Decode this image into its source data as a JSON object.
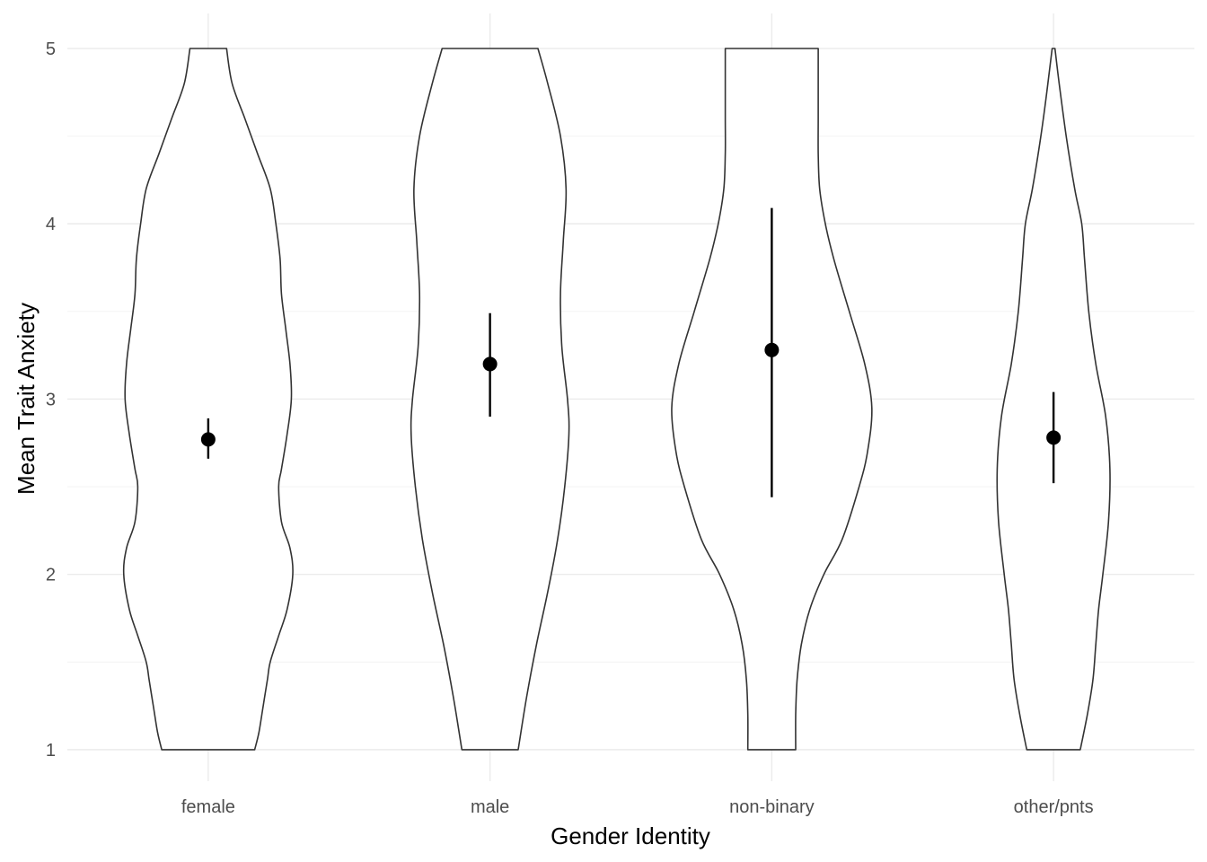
{
  "chart_data": {
    "type": "violin",
    "title": "",
    "xlabel": "Gender Identity",
    "ylabel": "Mean Trait Anxiety",
    "ylim": [
      0.82,
      5.2
    ],
    "yticks": [
      1,
      2,
      3,
      4,
      5
    ],
    "grid": true,
    "legend": "none",
    "categories": [
      "female",
      "male",
      "non-binary",
      "other/pnts"
    ],
    "groups": [
      {
        "name": "female",
        "mean": 2.77,
        "lower": 2.66,
        "upper": 2.89,
        "density_halfwidths": [
          [
            1.0,
            0.33
          ],
          [
            1.1,
            0.36
          ],
          [
            1.25,
            0.39
          ],
          [
            1.4,
            0.42
          ],
          [
            1.5,
            0.44
          ],
          [
            1.65,
            0.5
          ],
          [
            1.8,
            0.56
          ],
          [
            2.0,
            0.6
          ],
          [
            2.15,
            0.58
          ],
          [
            2.3,
            0.52
          ],
          [
            2.5,
            0.5
          ],
          [
            2.6,
            0.52
          ],
          [
            2.8,
            0.56
          ],
          [
            3.0,
            0.59
          ],
          [
            3.2,
            0.58
          ],
          [
            3.4,
            0.55
          ],
          [
            3.6,
            0.52
          ],
          [
            3.8,
            0.51
          ],
          [
            4.0,
            0.48
          ],
          [
            4.2,
            0.44
          ],
          [
            4.4,
            0.35
          ],
          [
            4.6,
            0.26
          ],
          [
            4.8,
            0.17
          ],
          [
            5.0,
            0.13
          ]
        ]
      },
      {
        "name": "male",
        "mean": 3.2,
        "lower": 2.9,
        "upper": 3.49,
        "density_halfwidths": [
          [
            1.0,
            0.2
          ],
          [
            1.3,
            0.26
          ],
          [
            1.6,
            0.33
          ],
          [
            1.9,
            0.41
          ],
          [
            2.2,
            0.48
          ],
          [
            2.5,
            0.53
          ],
          [
            2.8,
            0.56
          ],
          [
            3.0,
            0.55
          ],
          [
            3.3,
            0.51
          ],
          [
            3.6,
            0.5
          ],
          [
            3.9,
            0.52
          ],
          [
            4.2,
            0.54
          ],
          [
            4.5,
            0.5
          ],
          [
            4.8,
            0.41
          ],
          [
            5.0,
            0.34
          ]
        ]
      },
      {
        "name": "non-binary",
        "mean": 3.28,
        "lower": 2.44,
        "upper": 4.09,
        "density_halfwidths": [
          [
            1.0,
            0.17
          ],
          [
            1.2,
            0.17
          ],
          [
            1.4,
            0.18
          ],
          [
            1.6,
            0.21
          ],
          [
            1.8,
            0.27
          ],
          [
            2.0,
            0.37
          ],
          [
            2.2,
            0.5
          ],
          [
            2.5,
            0.62
          ],
          [
            2.7,
            0.68
          ],
          [
            2.95,
            0.71
          ],
          [
            3.2,
            0.66
          ],
          [
            3.5,
            0.55
          ],
          [
            3.8,
            0.44
          ],
          [
            4.0,
            0.38
          ],
          [
            4.2,
            0.34
          ],
          [
            4.4,
            0.33
          ],
          [
            4.6,
            0.33
          ],
          [
            4.8,
            0.33
          ],
          [
            5.0,
            0.33
          ]
        ]
      },
      {
        "name": "other/pnts",
        "mean": 2.78,
        "lower": 2.52,
        "upper": 3.04,
        "density_halfwidths": [
          [
            1.0,
            0.19
          ],
          [
            1.2,
            0.24
          ],
          [
            1.4,
            0.28
          ],
          [
            1.6,
            0.3
          ],
          [
            1.8,
            0.32
          ],
          [
            2.0,
            0.35
          ],
          [
            2.3,
            0.39
          ],
          [
            2.6,
            0.4
          ],
          [
            2.9,
            0.37
          ],
          [
            3.2,
            0.3
          ],
          [
            3.5,
            0.25
          ],
          [
            3.8,
            0.22
          ],
          [
            4.0,
            0.2
          ],
          [
            4.2,
            0.15
          ],
          [
            4.5,
            0.09
          ],
          [
            4.8,
            0.04
          ],
          [
            5.0,
            0.01
          ]
        ]
      }
    ]
  }
}
